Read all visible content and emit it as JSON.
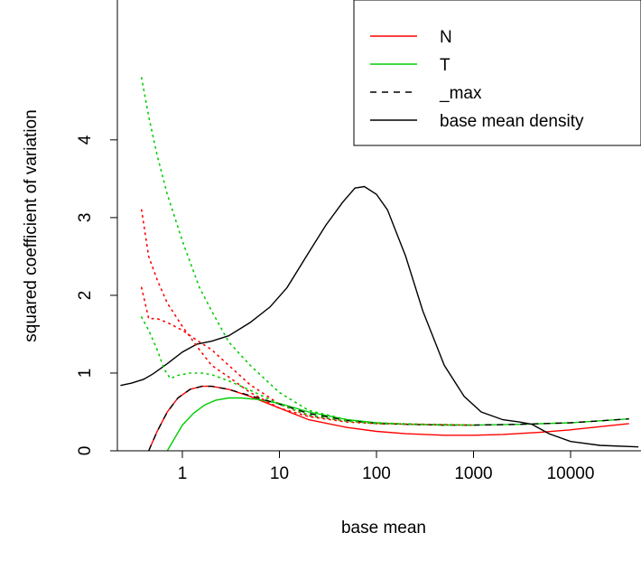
{
  "chart_data": {
    "type": "line",
    "title": "",
    "xlabel": "base mean",
    "ylabel": "squared coefficient of variation",
    "x_scale": "log10",
    "xlim": [
      0.23,
      50000
    ],
    "ylim": [
      0,
      4.8
    ],
    "grid": false,
    "legend_position": "top-right",
    "x_ticks": [
      {
        "value": 1,
        "label": "1"
      },
      {
        "value": 10,
        "label": "10"
      },
      {
        "value": 100,
        "label": "100"
      },
      {
        "value": 1000,
        "label": "1000"
      },
      {
        "value": 10000,
        "label": "10000"
      }
    ],
    "y_ticks": [
      {
        "value": 0,
        "label": "0"
      },
      {
        "value": 1,
        "label": "1"
      },
      {
        "value": 2,
        "label": "2"
      },
      {
        "value": 3,
        "label": "3"
      },
      {
        "value": 4,
        "label": "4"
      }
    ],
    "legend": [
      {
        "label": "N",
        "color": "#ff0000",
        "dash": "solid"
      },
      {
        "label": "T",
        "color": "#00cd00",
        "dash": "solid"
      },
      {
        "label": "_max",
        "color": "#000000",
        "dash": "dashed"
      },
      {
        "label": "base mean density",
        "color": "#000000",
        "dash": "solid"
      }
    ],
    "series": [
      {
        "name": "N",
        "color": "#ff0000",
        "dash": "solid",
        "points": [
          [
            0.45,
            0
          ],
          [
            0.55,
            0.25
          ],
          [
            0.7,
            0.5
          ],
          [
            0.9,
            0.68
          ],
          [
            1.2,
            0.79
          ],
          [
            1.6,
            0.83
          ],
          [
            2,
            0.83
          ],
          [
            3,
            0.79
          ],
          [
            5,
            0.7
          ],
          [
            10,
            0.55
          ],
          [
            20,
            0.4
          ],
          [
            50,
            0.3
          ],
          [
            100,
            0.25
          ],
          [
            200,
            0.22
          ],
          [
            500,
            0.2
          ],
          [
            1000,
            0.2
          ],
          [
            2000,
            0.21
          ],
          [
            5000,
            0.24
          ],
          [
            10000,
            0.27
          ],
          [
            20000,
            0.31
          ],
          [
            40000,
            0.35
          ]
        ]
      },
      {
        "name": "T",
        "color": "#00cd00",
        "dash": "solid",
        "points": [
          [
            0.7,
            0
          ],
          [
            0.85,
            0.18
          ],
          [
            1,
            0.33
          ],
          [
            1.3,
            0.48
          ],
          [
            1.7,
            0.59
          ],
          [
            2.2,
            0.65
          ],
          [
            3,
            0.68
          ],
          [
            4,
            0.68
          ],
          [
            6,
            0.66
          ],
          [
            10,
            0.61
          ],
          [
            20,
            0.5
          ],
          [
            50,
            0.4
          ],
          [
            100,
            0.36
          ],
          [
            200,
            0.34
          ],
          [
            500,
            0.33
          ],
          [
            1000,
            0.33
          ],
          [
            3000,
            0.34
          ],
          [
            10000,
            0.36
          ],
          [
            40000,
            0.41
          ]
        ]
      },
      {
        "name": "_max",
        "color": "#000000",
        "dash": "dashed",
        "points": [
          [
            0.45,
            0
          ],
          [
            0.55,
            0.25
          ],
          [
            0.7,
            0.5
          ],
          [
            0.9,
            0.68
          ],
          [
            1.2,
            0.79
          ],
          [
            1.6,
            0.83
          ],
          [
            2,
            0.83
          ],
          [
            3,
            0.79
          ],
          [
            5,
            0.71
          ],
          [
            10,
            0.6
          ],
          [
            20,
            0.48
          ],
          [
            50,
            0.39
          ],
          [
            100,
            0.35
          ],
          [
            200,
            0.34
          ],
          [
            500,
            0.33
          ],
          [
            1000,
            0.33
          ],
          [
            3000,
            0.34
          ],
          [
            10000,
            0.36
          ],
          [
            40000,
            0.41
          ]
        ]
      },
      {
        "name": "base mean density",
        "color": "#000000",
        "dash": "solid",
        "points": [
          [
            0.23,
            0.84
          ],
          [
            0.3,
            0.87
          ],
          [
            0.4,
            0.92
          ],
          [
            0.5,
            0.99
          ],
          [
            0.7,
            1.12
          ],
          [
            1,
            1.27
          ],
          [
            1.4,
            1.37
          ],
          [
            2,
            1.41
          ],
          [
            3,
            1.48
          ],
          [
            5,
            1.65
          ],
          [
            8,
            1.85
          ],
          [
            12,
            2.1
          ],
          [
            20,
            2.55
          ],
          [
            30,
            2.9
          ],
          [
            45,
            3.2
          ],
          [
            60,
            3.38
          ],
          [
            75,
            3.4
          ],
          [
            100,
            3.3
          ],
          [
            130,
            3.1
          ],
          [
            200,
            2.5
          ],
          [
            300,
            1.8
          ],
          [
            500,
            1.1
          ],
          [
            800,
            0.7
          ],
          [
            1200,
            0.5
          ],
          [
            2000,
            0.4
          ],
          [
            3000,
            0.37
          ],
          [
            4000,
            0.34
          ],
          [
            6000,
            0.22
          ],
          [
            10000,
            0.12
          ],
          [
            20000,
            0.07
          ],
          [
            50000,
            0.05
          ]
        ]
      },
      {
        "name": "",
        "color": "#ff0000",
        "dash": "dotted",
        "points": [
          [
            0.38,
            3.1
          ],
          [
            0.45,
            2.5
          ],
          [
            0.55,
            2.2
          ],
          [
            0.7,
            1.9
          ],
          [
            1,
            1.6
          ],
          [
            1.5,
            1.3
          ],
          [
            2,
            1.1
          ],
          [
            3,
            0.95
          ],
          [
            5,
            0.75
          ],
          [
            10,
            0.55
          ],
          [
            20,
            0.44
          ],
          [
            50,
            0.37
          ],
          [
            100,
            0.35
          ],
          [
            300,
            0.34
          ],
          [
            1000,
            0.33
          ]
        ]
      },
      {
        "name": "",
        "color": "#ff0000",
        "dash": "dotted",
        "points": [
          [
            0.38,
            2.1
          ],
          [
            0.45,
            1.7
          ],
          [
            0.55,
            1.7
          ],
          [
            0.7,
            1.65
          ],
          [
            1,
            1.55
          ],
          [
            1.5,
            1.4
          ],
          [
            2,
            1.3
          ],
          [
            3,
            1.1
          ],
          [
            5,
            0.85
          ],
          [
            10,
            0.6
          ],
          [
            20,
            0.45
          ],
          [
            50,
            0.38
          ],
          [
            100,
            0.35
          ],
          [
            300,
            0.34
          ],
          [
            1000,
            0.33
          ]
        ]
      },
      {
        "name": "",
        "color": "#00cd00",
        "dash": "dotted",
        "points": [
          [
            0.38,
            4.8
          ],
          [
            0.45,
            4.3
          ],
          [
            0.55,
            3.8
          ],
          [
            0.7,
            3.3
          ],
          [
            1,
            2.7
          ],
          [
            1.5,
            2.1
          ],
          [
            2,
            1.8
          ],
          [
            3,
            1.4
          ],
          [
            5,
            1.1
          ],
          [
            10,
            0.75
          ],
          [
            20,
            0.52
          ],
          [
            50,
            0.4
          ],
          [
            100,
            0.36
          ],
          [
            300,
            0.34
          ],
          [
            1000,
            0.33
          ]
        ]
      },
      {
        "name": "",
        "color": "#00cd00",
        "dash": "dotted",
        "points": [
          [
            0.38,
            1.72
          ],
          [
            0.45,
            1.55
          ],
          [
            0.55,
            1.3
          ],
          [
            0.65,
            1.05
          ],
          [
            0.75,
            0.93
          ],
          [
            0.9,
            0.97
          ],
          [
            1.2,
            1.0
          ],
          [
            1.6,
            1.0
          ],
          [
            2,
            0.98
          ],
          [
            3,
            0.9
          ],
          [
            5,
            0.78
          ],
          [
            10,
            0.6
          ],
          [
            20,
            0.46
          ],
          [
            50,
            0.38
          ],
          [
            100,
            0.35
          ],
          [
            300,
            0.34
          ],
          [
            1000,
            0.33
          ]
        ]
      }
    ]
  }
}
